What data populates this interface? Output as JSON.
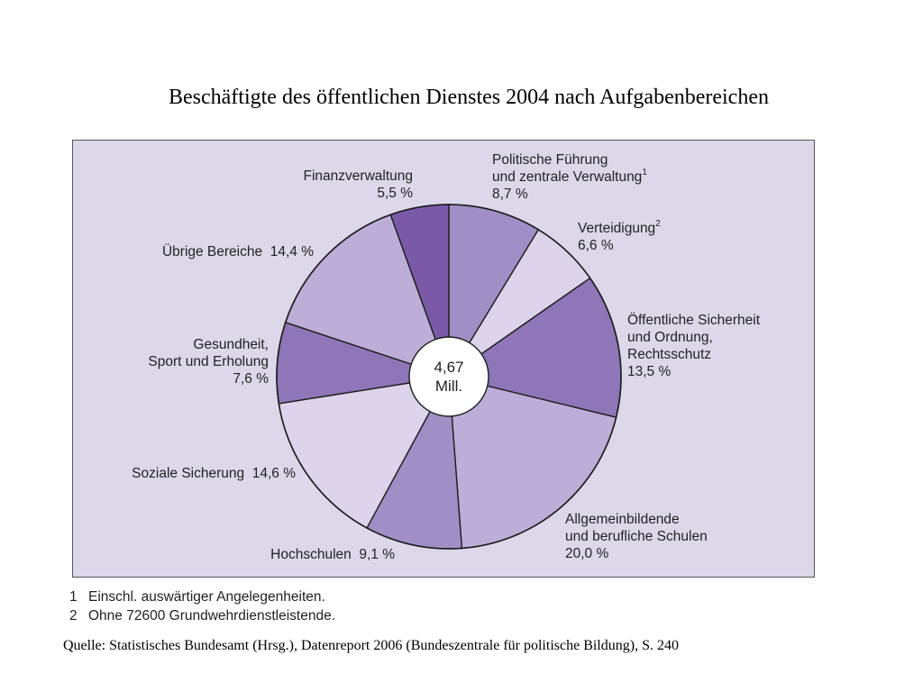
{
  "title": "Beschäftigte des öffentlichen Dienstes 2004 nach Aufgabenbereichen",
  "chart_data": {
    "type": "pie",
    "center_label": [
      "4,67",
      "Mill."
    ],
    "slices": [
      {
        "lines": [
          "Politische Führung",
          "und zentrale Verwaltung"
        ],
        "footnote": "1",
        "value_label": "8,7 %",
        "value": 8.7,
        "color": "#a08ec6"
      },
      {
        "lines": [
          "Verteidigung"
        ],
        "footnote": "2",
        "value_label": "6,6 %",
        "value": 6.6,
        "color": "#dcd4ea"
      },
      {
        "lines": [
          "Öffentliche Sicherheit",
          "und Ordnung,",
          "Rechtsschutz"
        ],
        "footnote": "",
        "value_label": "13,5 %",
        "value": 13.5,
        "color": "#8e76b8"
      },
      {
        "lines": [
          "Allgemeinbildende",
          "und berufliche Schulen"
        ],
        "footnote": "",
        "value_label": "20,0 %",
        "value": 20.0,
        "color": "#bcaed8"
      },
      {
        "lines": [
          "Hochschulen"
        ],
        "footnote": "",
        "value_label": "9,1 %",
        "value": 9.1,
        "color": "#a08ec6"
      },
      {
        "lines": [
          "Soziale Sicherung"
        ],
        "footnote": "",
        "value_label": "14,6 %",
        "value": 14.6,
        "color": "#dcd4ea"
      },
      {
        "lines": [
          "Gesundheit,",
          "Sport und Erholung"
        ],
        "footnote": "",
        "value_label": "7,6 %",
        "value": 7.6,
        "color": "#8e76b8"
      },
      {
        "lines": [
          "Übrige Bereiche"
        ],
        "footnote": "",
        "value_label": "14,4 %",
        "value": 14.4,
        "color": "#bcaed8"
      },
      {
        "lines": [
          "Finanzverwaltung"
        ],
        "footnote": "",
        "value_label": "5,5 %",
        "value": 5.5,
        "color": "#7a5aa8"
      }
    ]
  },
  "footnotes": [
    {
      "num": "1",
      "text": "Einschl. auswärtiger Angelegenheiten."
    },
    {
      "num": "2",
      "text": "Ohne 72600 Grundwehrdienstleistende."
    }
  ],
  "source": "Quelle: Statistisches Bundesamt (Hrsg.), Datenreport 2006 (Bundeszentrale für politische Bildung), S. 240"
}
